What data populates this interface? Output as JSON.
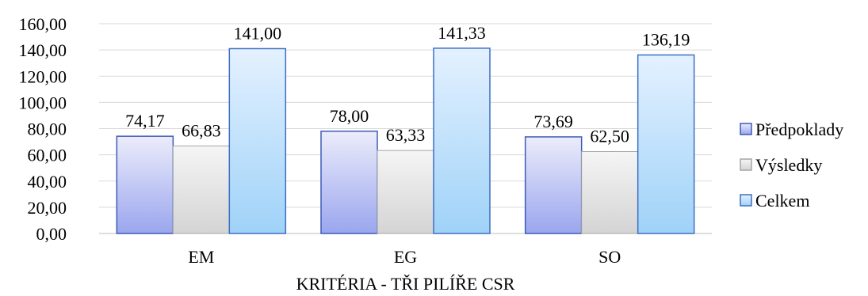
{
  "chart_data": {
    "type": "bar",
    "categories": [
      "EM",
      "EG",
      "SO"
    ],
    "series": [
      {
        "name": "Předpoklady",
        "values": [
          74.17,
          78.0,
          73.69
        ],
        "value_labels": [
          "74,17",
          "78,00",
          "73,69"
        ],
        "color_top": "#ececfb",
        "color_bottom": "#9aa6ee",
        "stroke": "#3d5ab8"
      },
      {
        "name": "Výsledky",
        "values": [
          66.83,
          63.33,
          62.5
        ],
        "value_labels": [
          "66,83",
          "63,33",
          "62,50"
        ],
        "color_top": "#f5f5f5",
        "color_bottom": "#d4d4d4",
        "stroke": "#a6a6a6"
      },
      {
        "name": "Celkem",
        "values": [
          141.0,
          141.33,
          136.19
        ],
        "value_labels": [
          "141,00",
          "141,33",
          "136,19"
        ],
        "color_top": "#e4f1ff",
        "color_bottom": "#9fd2f8",
        "stroke": "#3d6fc4"
      }
    ],
    "xlabel": "KRITÉRIA - TŘI PILÍŘE CSR",
    "ylabel": "",
    "ylim": [
      0,
      160
    ],
    "yticks": [
      0,
      20,
      40,
      60,
      80,
      100,
      120,
      140,
      160
    ],
    "ytick_labels": [
      "0,00",
      "20,00",
      "40,00",
      "60,00",
      "80,00",
      "100,00",
      "120,00",
      "140,00",
      "160,00"
    ],
    "grid": true,
    "legend_position": "right"
  }
}
